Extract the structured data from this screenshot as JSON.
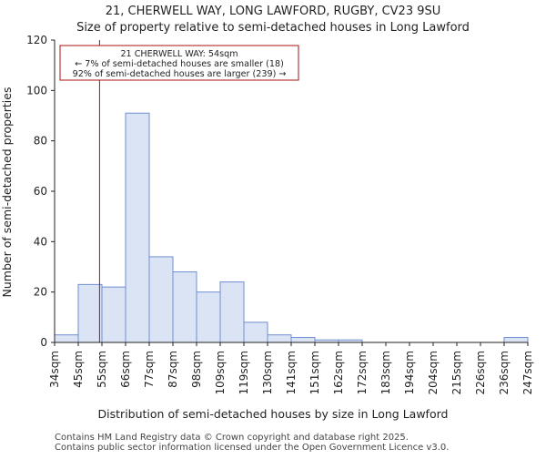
{
  "chart_data": {
    "type": "bar",
    "title": "21, CHERWELL WAY, LONG LAWFORD, RUGBY, CV23 9SU",
    "subtitle": "Size of property relative to semi-detached houses in Long Lawford",
    "xlabel": "Distribution of semi-detached houses by size in Long Lawford",
    "ylabel": "Number of semi-detached properties",
    "ylim": [
      0,
      120
    ],
    "yticks": [
      0,
      20,
      40,
      60,
      80,
      100,
      120
    ],
    "bin_edges": [
      "34sqm",
      "45sqm",
      "55sqm",
      "66sqm",
      "77sqm",
      "87sqm",
      "98sqm",
      "109sqm",
      "119sqm",
      "130sqm",
      "141sqm",
      "151sqm",
      "162sqm",
      "172sqm",
      "183sqm",
      "194sqm",
      "204sqm",
      "215sqm",
      "226sqm",
      "236sqm",
      "247sqm"
    ],
    "values": [
      3,
      23,
      22,
      91,
      34,
      28,
      20,
      24,
      8,
      3,
      2,
      1,
      1,
      0,
      0,
      0,
      0,
      0,
      0,
      2
    ],
    "property_marker": {
      "value_sqm": 54,
      "label": "21 CHERWELL WAY: 54sqm"
    },
    "annotation": {
      "line1": "21 CHERWELL WAY: 54sqm",
      "line2": "← 7% of semi-detached houses are smaller (18)",
      "line3": "92% of semi-detached houses are larger (239) →"
    },
    "colors": {
      "bar_fill": "#dbe4f5",
      "bar_stroke": "#6f8ed0",
      "marker": "#aa1111",
      "axis": "#222222"
    }
  },
  "footer": {
    "line1": "Contains HM Land Registry data © Crown copyright and database right 2025.",
    "line2": "Contains public sector information licensed under the Open Government Licence v3.0."
  }
}
